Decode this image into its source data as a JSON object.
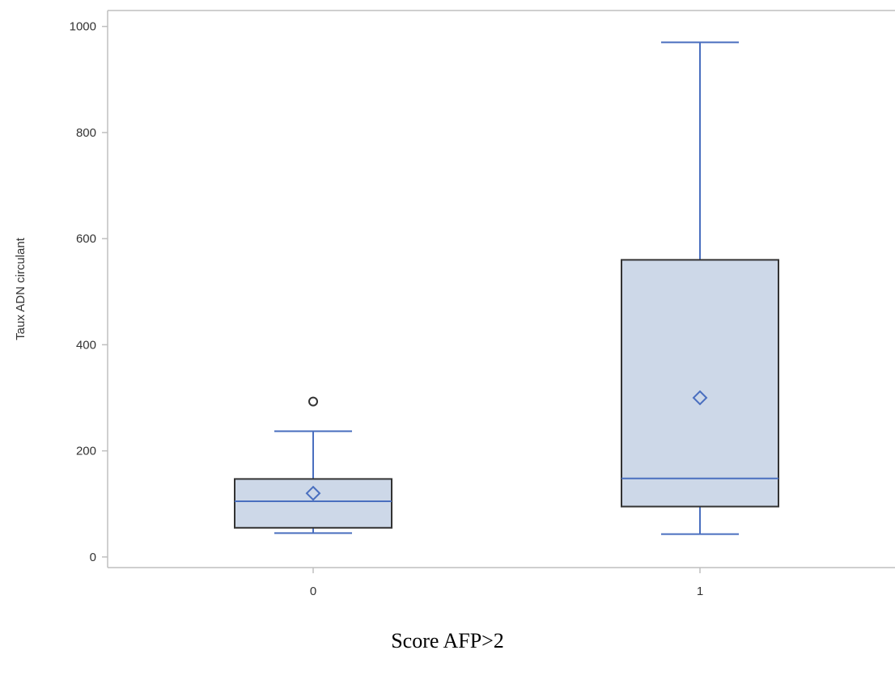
{
  "chart_data": {
    "type": "boxplot",
    "title": "",
    "xlabel": "Score AFP>2",
    "ylabel": "Taux ADN circulant",
    "categories": [
      "0",
      "1"
    ],
    "ylim": [
      -20,
      1030
    ],
    "yticks": [
      "0",
      "200",
      "400",
      "600",
      "800",
      "1000"
    ],
    "ytick_values": [
      0,
      200,
      400,
      600,
      800,
      1000
    ],
    "grid": false,
    "boxes": [
      {
        "category": "0",
        "min": 45,
        "q1": 55,
        "median": 105,
        "q3": 147,
        "max": 237,
        "mean": 120,
        "outliers": [
          293
        ]
      },
      {
        "category": "1",
        "min": 43,
        "q1": 95,
        "median": 148,
        "q3": 560,
        "max": 970,
        "mean": 300,
        "outliers": []
      }
    ],
    "colors": {
      "box_fill": "#cdd8e8",
      "box_edge": "#333333",
      "whisker": "#4a6fbf",
      "median": "#4a6fbf",
      "mean_marker": "#4a6fbf",
      "outlier": "#333333",
      "axis": "#bfbfbf"
    }
  }
}
